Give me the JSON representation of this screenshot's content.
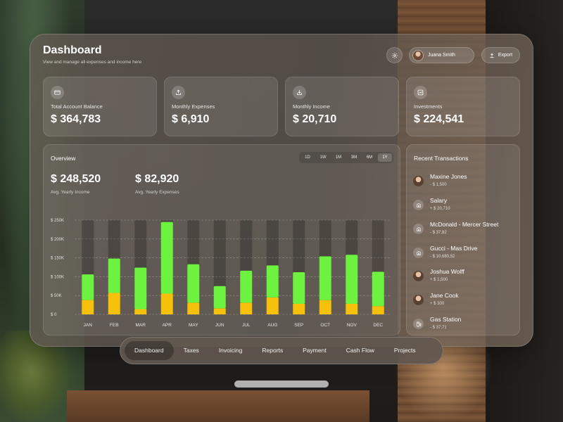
{
  "header": {
    "title": "Dashboard",
    "subtitle": "View and manage all expenses and income here",
    "user_name": "Juana Smith",
    "export_label": "Export"
  },
  "cards": [
    {
      "label": "Total Account Balance",
      "value": "$ 364,783",
      "icon": "card-icon"
    },
    {
      "label": "Monthly Expenses",
      "value": "$ 6,910",
      "icon": "upload-icon"
    },
    {
      "label": "Monthly Income",
      "value": "$ 20,710",
      "icon": "download-icon"
    },
    {
      "label": "Investments",
      "value": "$ 224,541",
      "icon": "chart-icon"
    }
  ],
  "overview": {
    "title": "Overview",
    "ranges": [
      "1D",
      "1W",
      "1M",
      "3M",
      "6M",
      "1Y"
    ],
    "active_range": "1Y",
    "income_value": "$ 248,520",
    "income_label": "Avg. Yearly Income",
    "expense_value": "$ 82,920",
    "expense_label": "Avg. Yearly Expenses"
  },
  "chart_data": {
    "type": "bar",
    "stacked": true,
    "categories": [
      "JAN",
      "FEB",
      "MAR",
      "APR",
      "MAY",
      "JUN",
      "JUL",
      "AUG",
      "SEP",
      "OCT",
      "NOV",
      "DEC"
    ],
    "y_tick_labels": [
      "$ 250K",
      "$ 200K",
      "$ 150K",
      "$ 100K",
      "$ 50K",
      "$ 0"
    ],
    "ylim": [
      0,
      250
    ],
    "series": [
      {
        "color": "#f7c10b",
        "values": [
          38,
          57,
          14,
          55,
          31,
          16,
          31,
          45,
          28,
          38,
          28,
          22
        ]
      },
      {
        "color": "#6cf23f",
        "values": [
          68,
          91,
          110,
          190,
          102,
          59,
          85,
          85,
          84,
          116,
          130,
          91
        ]
      }
    ],
    "background_bar_value": 250,
    "grid": true
  },
  "recent": {
    "title": "Recent Transactions",
    "items": [
      {
        "name": "Maxine Jones",
        "amount": "- $ 1,500",
        "type": "photo"
      },
      {
        "name": "Salary",
        "amount": "+ $ 20,710",
        "type": "bank"
      },
      {
        "name": "McDonald - Mercer Street",
        "amount": "- $ 37,82",
        "type": "bank"
      },
      {
        "name": "Gucci - Mas Drive",
        "amount": "- $ 10,680,52",
        "type": "bank"
      },
      {
        "name": "Joshua Wolff",
        "amount": "+ $ 1,500",
        "type": "photo"
      },
      {
        "name": "Jane Cook",
        "amount": "+ $ 300",
        "type": "photo"
      },
      {
        "name": "Gas Station",
        "amount": "- $ 37,71",
        "type": "fuel"
      }
    ]
  },
  "tabs": [
    "Dashboard",
    "Taxes",
    "Invoicing",
    "Reports",
    "Payment",
    "Cash Flow",
    "Projects"
  ],
  "active_tab": "Dashboard"
}
